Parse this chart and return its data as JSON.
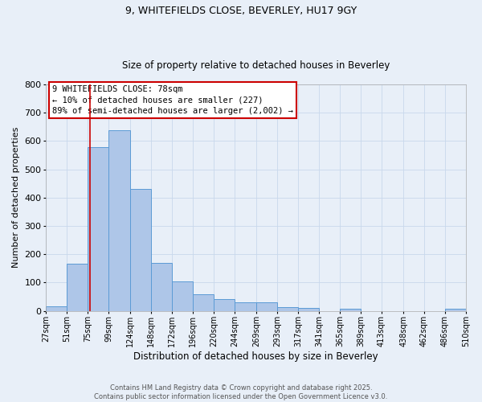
{
  "title": "9, WHITEFIELDS CLOSE, BEVERLEY, HU17 9GY",
  "subtitle": "Size of property relative to detached houses in Beverley",
  "xlabel": "Distribution of detached houses by size in Beverley",
  "ylabel": "Number of detached properties",
  "bar_left_edges": [
    27,
    51,
    75,
    99,
    124,
    148,
    172,
    196,
    220,
    244,
    269,
    293,
    317,
    341,
    365,
    389,
    413,
    438,
    462,
    486
  ],
  "bar_heights": [
    17,
    167,
    577,
    637,
    430,
    168,
    103,
    57,
    40,
    30,
    30,
    13,
    10,
    0,
    8,
    0,
    0,
    0,
    0,
    7
  ],
  "bar_widths": [
    24,
    24,
    24,
    25,
    24,
    24,
    24,
    24,
    24,
    25,
    24,
    24,
    24,
    24,
    24,
    24,
    25,
    24,
    24,
    24
  ],
  "bar_color": "#aec6e8",
  "bar_edge_color": "#5b9bd5",
  "property_line_x": 78,
  "property_line_color": "#cc0000",
  "annotation_text": "9 WHITEFIELDS CLOSE: 78sqm\n← 10% of detached houses are smaller (227)\n89% of semi-detached houses are larger (2,002) →",
  "annotation_box_color": "white",
  "annotation_box_edge_color": "#cc0000",
  "xlim": [
    27,
    510
  ],
  "ylim": [
    0,
    800
  ],
  "yticks": [
    0,
    100,
    200,
    300,
    400,
    500,
    600,
    700,
    800
  ],
  "xtick_labels": [
    "27sqm",
    "51sqm",
    "75sqm",
    "99sqm",
    "124sqm",
    "148sqm",
    "172sqm",
    "196sqm",
    "220sqm",
    "244sqm",
    "269sqm",
    "293sqm",
    "317sqm",
    "341sqm",
    "365sqm",
    "389sqm",
    "413sqm",
    "438sqm",
    "462sqm",
    "486sqm",
    "510sqm"
  ],
  "xtick_positions": [
    27,
    51,
    75,
    99,
    124,
    148,
    172,
    196,
    220,
    244,
    269,
    293,
    317,
    341,
    365,
    389,
    413,
    438,
    462,
    486,
    510
  ],
  "grid_color": "#c8d8ec",
  "bg_color": "#e8eff8",
  "footer_text": "Contains HM Land Registry data © Crown copyright and database right 2025.\nContains public sector information licensed under the Open Government Licence v3.0.",
  "title_fontsize": 9,
  "subtitle_fontsize": 8.5,
  "ylabel_fontsize": 8,
  "xlabel_fontsize": 8.5,
  "tick_fontsize": 7,
  "annotation_fontsize": 7.5,
  "footer_fontsize": 6
}
